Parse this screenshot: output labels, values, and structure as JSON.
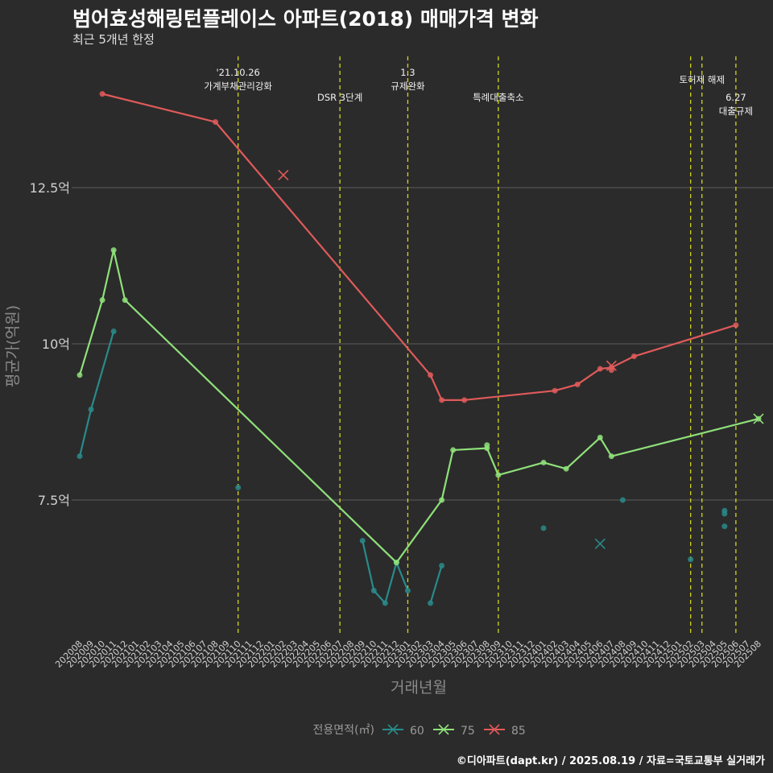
{
  "title": "범어효성해링턴플레이스 아파트(2018) 매매가격 변화",
  "subtitle": "최근 5개년 한정",
  "caption": "©디아파트(dapt.kr) / 2025.08.19 / 자료=국토교통부 실거래가",
  "chart_data": {
    "type": "line",
    "xlabel": "거래년월",
    "ylabel": "평균가(억원)",
    "ylim": [
      5.6,
      14.0
    ],
    "y_ticks": [
      {
        "value": 7.5,
        "label": "7.5억"
      },
      {
        "value": 10,
        "label": "10억"
      },
      {
        "value": 12.5,
        "label": "12.5억"
      }
    ],
    "grid": true,
    "months": [
      "202008",
      "202009",
      "202010",
      "202011",
      "202012",
      "202101",
      "202102",
      "202103",
      "202104",
      "202105",
      "202106",
      "202107",
      "202108",
      "202109",
      "202110",
      "202111",
      "202112",
      "202201",
      "202202",
      "202203",
      "202204",
      "202205",
      "202206",
      "202207",
      "202208",
      "202209",
      "202210",
      "202211",
      "202212",
      "202301",
      "202302",
      "202303",
      "202304",
      "202305",
      "202306",
      "202307",
      "202308",
      "202309",
      "202310",
      "202311",
      "202312",
      "202401",
      "202402",
      "202403",
      "202404",
      "202405",
      "202406",
      "202407",
      "202408",
      "202409",
      "202410",
      "202411",
      "202412",
      "202501",
      "202502",
      "202503",
      "202504",
      "202505",
      "202506",
      "202507",
      "202508"
    ],
    "legend": {
      "title": "전용면적(㎡)",
      "position": "bottom"
    },
    "series": [
      {
        "name": "60",
        "color": "#2a8a8a",
        "line_segments": [
          [
            [
              "202008",
              8.2
            ],
            [
              "202009",
              8.95
            ],
            [
              "202011",
              10.2
            ]
          ],
          [
            [
              "202209",
              6.85
            ],
            [
              "202210",
              6.05
            ],
            [
              "202211",
              5.85
            ],
            [
              "202212",
              6.5
            ],
            [
              "202301",
              6.05
            ]
          ],
          [
            [
              "202303",
              5.85
            ],
            [
              "202304",
              6.45
            ]
          ]
        ],
        "isolated_points": [
          [
            "202110",
            7.7
          ],
          [
            "202401",
            7.05
          ],
          [
            "202408",
            7.5
          ],
          [
            "202502",
            6.55
          ],
          [
            "202505",
            7.33
          ],
          [
            "202505",
            7.28
          ],
          [
            "202505",
            7.08
          ]
        ],
        "x_markers": [
          [
            "202406",
            6.8
          ]
        ]
      },
      {
        "name": "75",
        "color": "#8fe07a",
        "line_segments": [
          [
            [
              "202008",
              9.5
            ],
            [
              "202010",
              10.7
            ],
            [
              "202011",
              11.5
            ],
            [
              "202012",
              10.7
            ],
            [
              "202212",
              6.5
            ],
            [
              "202304",
              7.5
            ],
            [
              "202305",
              8.3
            ],
            [
              "202308",
              8.33
            ],
            [
              "202309",
              7.9
            ],
            [
              "202401",
              8.1
            ],
            [
              "202403",
              8.0
            ],
            [
              "202406",
              8.5
            ],
            [
              "202407",
              8.2
            ],
            [
              "202508",
              8.8
            ]
          ]
        ],
        "isolated_points": [
          [
            "202308",
            8.38
          ]
        ],
        "x_markers": [
          [
            "202508",
            8.8
          ]
        ]
      },
      {
        "name": "85",
        "color": "#e05a5a",
        "line_segments": [
          [
            [
              "202010",
              14.0
            ],
            [
              "202108",
              13.55
            ],
            [
              "202303",
              9.5
            ],
            [
              "202304",
              9.1
            ],
            [
              "202306",
              9.1
            ],
            [
              "202402",
              9.25
            ],
            [
              "202404",
              9.35
            ],
            [
              "202406",
              9.6
            ],
            [
              "202407",
              9.62
            ],
            [
              "202409",
              9.8
            ],
            [
              "202506",
              10.3
            ]
          ]
        ],
        "isolated_points": [
          [
            "202407",
            9.58
          ]
        ],
        "x_markers": [
          [
            "202202",
            12.7
          ],
          [
            "202407",
            9.65
          ]
        ]
      }
    ],
    "events": [
      {
        "month": "202110",
        "lines": [
          "'21.10.26",
          "가계부채관리강화"
        ],
        "row": 0
      },
      {
        "month": "202207",
        "lines": [
          "DSR 3단계"
        ],
        "row": 1
      },
      {
        "month": "202301",
        "lines": [
          "1.3",
          "규제완화"
        ],
        "row": 0
      },
      {
        "month": "202309",
        "lines": [
          "특례대출축소"
        ],
        "row": 1
      },
      {
        "month": "202502",
        "lines": [],
        "row": 0
      },
      {
        "month": "202503",
        "lines": [
          "토허제 해제"
        ],
        "row": 0.3
      },
      {
        "month": "202506",
        "lines": [
          "6.27",
          "대출규제"
        ],
        "row": 1
      }
    ],
    "event_line_color": "#d4d41e"
  }
}
